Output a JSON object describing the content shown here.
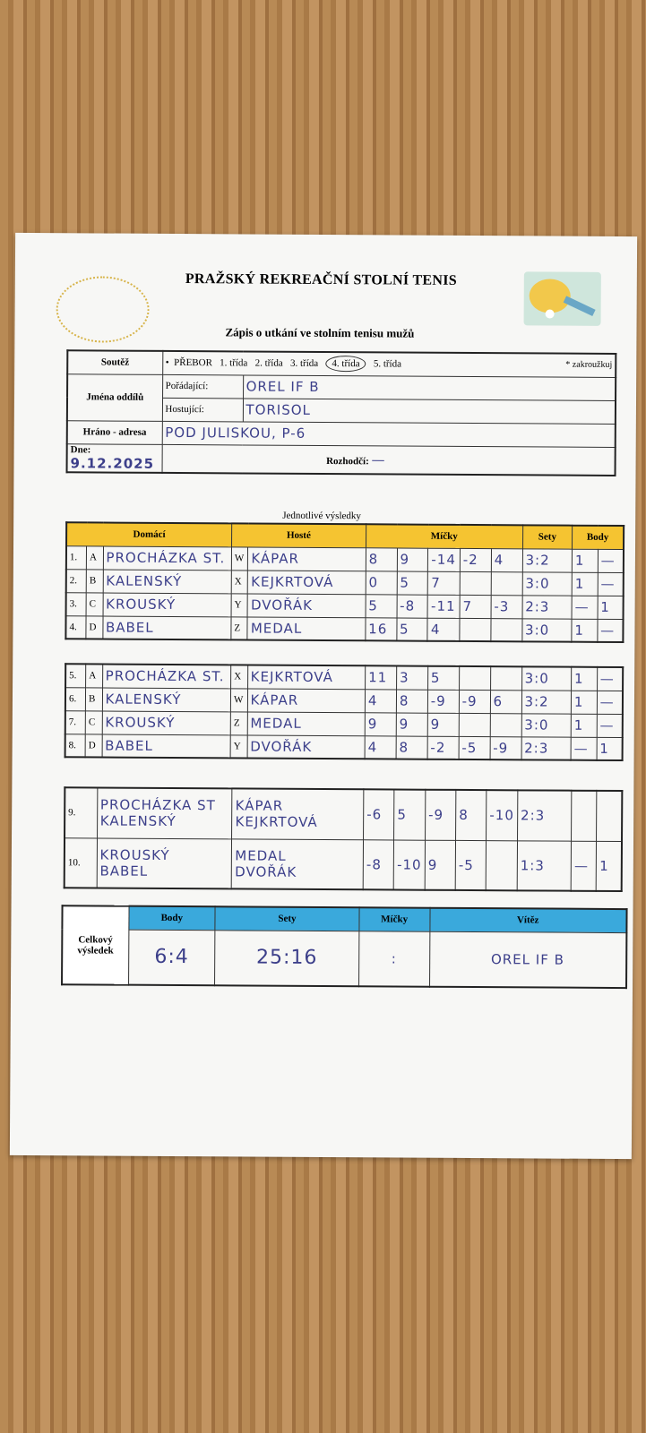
{
  "header": {
    "title": "PRAŽSKÝ REKREAČNÍ STOLNÍ TENIS",
    "subtitle": "Zápis o utkání ve stolním tenisu mužů"
  },
  "info": {
    "soutez_label": "Soutěž",
    "classes": [
      "PŘEBOR",
      "1. třída",
      "2. třída",
      "3. třída",
      "4. třída",
      "5. třída"
    ],
    "selected_class": "4. třída",
    "note": "* zakroužkuj",
    "jmena_label": "Jména oddílů",
    "poradajici_label": "Pořádající:",
    "poradajici": "OREL IF B",
    "hostujici_label": "Hostující:",
    "hostujici": "TORISOL",
    "hrano_label": "Hráno - adresa",
    "hrano": "POD JULISKOU, P-6",
    "dne_label": "Dne:",
    "dne": "9.12.2025",
    "rozhodci_label": "Rozhodčí:",
    "rozhodci": "—"
  },
  "results_caption": "Jednotlivé výsledky",
  "columns": {
    "home": "Domácí",
    "guest": "Hosté",
    "balls": "Míčky",
    "sets": "Sety",
    "points": "Body"
  },
  "matches": [
    {
      "no": "1.",
      "hl": "A",
      "home": "PROCHÁZKA ST.",
      "gl": "W",
      "guest": "KÁPAR",
      "balls": [
        "8",
        "9",
        "-14",
        "-2",
        "4"
      ],
      "sets": "3:2",
      "ph": "1",
      "pg": "—"
    },
    {
      "no": "2.",
      "hl": "B",
      "home": "KALENSKÝ",
      "gl": "X",
      "guest": "KEJKRTOVÁ",
      "balls": [
        "0",
        "5",
        "7",
        "",
        ""
      ],
      "sets": "3:0",
      "ph": "1",
      "pg": "—"
    },
    {
      "no": "3.",
      "hl": "C",
      "home": "KROUSKÝ",
      "gl": "Y",
      "guest": "DVOŘÁK",
      "balls": [
        "5",
        "-8",
        "-11",
        "7",
        "-3"
      ],
      "sets": "2:3",
      "ph": "—",
      "pg": "1"
    },
    {
      "no": "4.",
      "hl": "D",
      "home": "BABEL",
      "gl": "Z",
      "guest": "MEDAL",
      "balls": [
        "16",
        "5",
        "4",
        "",
        ""
      ],
      "sets": "3:0",
      "ph": "1",
      "pg": "—"
    },
    {
      "no": "5.",
      "hl": "A",
      "home": "PROCHÁZKA ST.",
      "gl": "X",
      "guest": "KEJKRTOVÁ",
      "balls": [
        "11",
        "3",
        "5",
        "",
        ""
      ],
      "sets": "3:0",
      "ph": "1",
      "pg": "—"
    },
    {
      "no": "6.",
      "hl": "B",
      "home": "KALENSKÝ",
      "gl": "W",
      "guest": "KÁPAR",
      "balls": [
        "4",
        "8",
        "-9",
        "-9",
        "6"
      ],
      "sets": "3:2",
      "ph": "1",
      "pg": "—"
    },
    {
      "no": "7.",
      "hl": "C",
      "home": "KROUSKÝ",
      "gl": "Z",
      "guest": "MEDAL",
      "balls": [
        "9",
        "9",
        "9",
        "",
        ""
      ],
      "sets": "3:0",
      "ph": "1",
      "pg": "—"
    },
    {
      "no": "8.",
      "hl": "D",
      "home": "BABEL",
      "gl": "Y",
      "guest": "DVOŘÁK",
      "balls": [
        "4",
        "8",
        "-2",
        "-5",
        "-9"
      ],
      "sets": "2:3",
      "ph": "—",
      "pg": "1"
    }
  ],
  "doubles": [
    {
      "no": "9.",
      "home1": "PROCHÁZKA ST",
      "home2": "KALENSKÝ",
      "guest1": "KÁPAR",
      "guest2": "KEJKRTOVÁ",
      "balls": [
        "-6",
        "5",
        "-9",
        "8",
        "-10"
      ],
      "sets": "2:3",
      "ph": "",
      "pg": ""
    },
    {
      "no": "10.",
      "home1": "KROUSKÝ",
      "home2": "BABEL",
      "guest1": "MEDAL",
      "guest2": "DVOŘÁK",
      "balls": [
        "-8",
        "-10",
        "9",
        "-5",
        ""
      ],
      "sets": "1:3",
      "ph": "—",
      "pg": "1"
    }
  ],
  "total": {
    "label": "Celkový výsledek",
    "body_label": "Body",
    "sety_label": "Sety",
    "micky_label": "Míčky",
    "vitez_label": "Vítěz",
    "body": "6:4",
    "sety": "25:16",
    "micky": ":",
    "vitez": "OREL IF B"
  },
  "colors": {
    "yellow_header": "#f5c431",
    "blue_header": "#3aa9dc",
    "ink": "#3c3f8a"
  }
}
